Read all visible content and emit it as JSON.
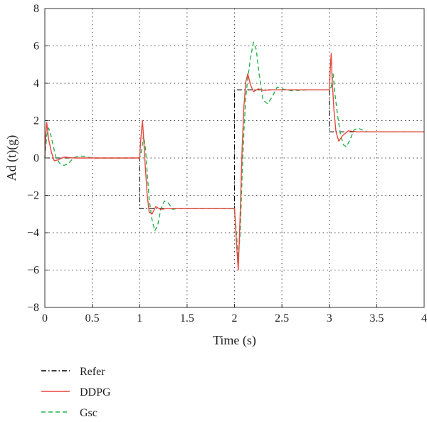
{
  "chart_data": {
    "type": "line",
    "title": "",
    "xlabel": "Time (s)",
    "ylabel": "Ad (t)(g)",
    "xlim": [
      0,
      4
    ],
    "ylim": [
      -8,
      8
    ],
    "xticks": [
      0,
      0.5,
      1,
      1.5,
      2,
      2.5,
      3,
      3.5,
      4
    ],
    "xtick_labels": [
      "0",
      "0.5",
      "1",
      "1.5",
      "2",
      "2.5",
      "3",
      "3.5",
      "4"
    ],
    "yticks": [
      -8,
      -6,
      -4,
      -2,
      0,
      2,
      4,
      6,
      8
    ],
    "ytick_labels": [
      "−8",
      "−6",
      "−4",
      "−2",
      "0",
      "2",
      "4",
      "6",
      "8"
    ],
    "grid": true,
    "legend_position": "bottom-left, below plot",
    "series": [
      {
        "name": "Refer",
        "color": "#000000",
        "style": "dash-dot",
        "x": [
          0,
          1.0,
          1.0,
          2.0,
          2.0,
          3.0,
          3.0,
          4.0
        ],
        "y": [
          0,
          0,
          -2.7,
          -2.7,
          3.65,
          3.65,
          1.4,
          1.4
        ]
      },
      {
        "name": "DDPG",
        "color": "#e8463c",
        "style": "solid",
        "x": [
          0,
          0.01,
          0.02,
          0.04,
          0.07,
          0.1,
          0.14,
          0.2,
          0.3,
          0.4,
          0.6,
          0.8,
          1.0,
          1.01,
          1.03,
          1.04,
          1.06,
          1.08,
          1.1,
          1.13,
          1.17,
          1.22,
          1.3,
          1.4,
          1.6,
          1.8,
          2.0,
          2.02,
          2.04,
          2.06,
          2.08,
          2.1,
          2.12,
          2.14,
          2.17,
          2.2,
          2.25,
          2.3,
          2.4,
          2.6,
          2.8,
          3.0,
          3.01,
          3.02,
          3.03,
          3.05,
          3.07,
          3.1,
          3.14,
          3.2,
          3.3,
          3.5,
          3.8,
          4.0
        ],
        "y": [
          0,
          1.2,
          1.9,
          1.0,
          0.3,
          -0.15,
          -0.1,
          0.05,
          0.0,
          0.0,
          0.0,
          0.0,
          0.0,
          0.9,
          2.0,
          1.2,
          -0.5,
          -2.0,
          -2.9,
          -3.0,
          -2.6,
          -2.75,
          -2.7,
          -2.7,
          -2.7,
          -2.7,
          -2.7,
          -4.5,
          -6.0,
          -3.0,
          0.5,
          2.8,
          4.1,
          4.5,
          3.9,
          3.55,
          3.7,
          3.62,
          3.65,
          3.65,
          3.65,
          3.65,
          4.8,
          5.6,
          4.2,
          2.5,
          1.4,
          0.9,
          1.2,
          1.45,
          1.4,
          1.4,
          1.4,
          1.4
        ]
      },
      {
        "name": "Gsc",
        "color": "#22b54c",
        "style": "dashed",
        "x": [
          0,
          0.02,
          0.04,
          0.06,
          0.09,
          0.12,
          0.16,
          0.2,
          0.25,
          0.3,
          0.35,
          0.4,
          0.5,
          0.7,
          1.0,
          1.02,
          1.04,
          1.06,
          1.08,
          1.1,
          1.13,
          1.16,
          1.19,
          1.22,
          1.26,
          1.3,
          1.35,
          1.4,
          1.5,
          1.7,
          2.0,
          2.02,
          2.04,
          2.06,
          2.08,
          2.1,
          2.12,
          2.14,
          2.17,
          2.2,
          2.23,
          2.26,
          2.3,
          2.35,
          2.4,
          2.45,
          2.5,
          2.6,
          2.8,
          3.0,
          3.02,
          3.04,
          3.06,
          3.09,
          3.12,
          3.15,
          3.18,
          3.22,
          3.26,
          3.3,
          3.35,
          3.4,
          3.5,
          3.7,
          4.0
        ],
        "y": [
          0,
          1.2,
          1.6,
          1.3,
          0.6,
          0.0,
          -0.3,
          -0.4,
          -0.3,
          0.0,
          0.1,
          0.1,
          0.0,
          0.0,
          0.0,
          0.4,
          1.2,
          0.6,
          -0.8,
          -2.2,
          -3.3,
          -3.9,
          -3.6,
          -2.8,
          -2.3,
          -2.4,
          -2.75,
          -2.7,
          -2.7,
          -2.7,
          -2.7,
          -4.0,
          -5.4,
          -4.0,
          -1.0,
          1.5,
          3.3,
          4.3,
          5.4,
          6.2,
          5.8,
          4.5,
          3.1,
          2.9,
          3.3,
          3.8,
          3.7,
          3.6,
          3.65,
          3.65,
          3.8,
          4.5,
          3.4,
          2.2,
          1.2,
          0.7,
          0.6,
          1.0,
          1.5,
          1.6,
          1.5,
          1.4,
          1.4,
          1.4,
          1.4
        ]
      }
    ]
  }
}
